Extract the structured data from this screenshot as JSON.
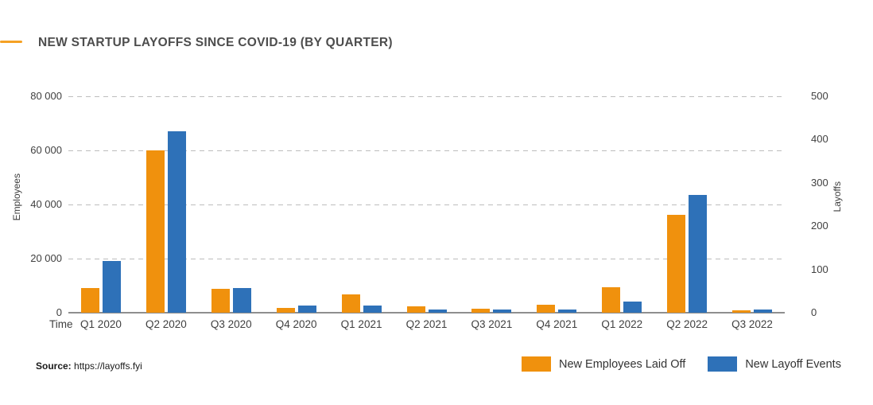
{
  "title": "NEW STARTUP LAYOFFS SINCE COVID-19 (BY QUARTER)",
  "source": {
    "label": "Source:",
    "url_text": "https://layoffs.fyi"
  },
  "colors": {
    "accent_dash": "#F5A124",
    "bar_employees": "#F0910D",
    "bar_events": "#2E71B8",
    "grid_line": "#BDBDBD",
    "axis_line": "#8F8F8F",
    "title_text": "#4D4D4D"
  },
  "chart_data": {
    "type": "bar",
    "title": "NEW STARTUP LAYOFFS SINCE COVID-19 (BY QUARTER)",
    "categories": [
      "Q1 2020",
      "Q2 2020",
      "Q3 2020",
      "Q4 2020",
      "Q1 2021",
      "Q2 2021",
      "Q3 2021",
      "Q4 2021",
      "Q1 2022",
      "Q2 2022",
      "Q3 2022"
    ],
    "series": [
      {
        "name": "New Employees Laid Off",
        "axis": "left",
        "color": "#F0910D",
        "values": [
          9100,
          60000,
          8800,
          1700,
          6700,
          2400,
          1600,
          2800,
          9400,
          36200,
          800
        ]
      },
      {
        "name": "New Layoff Events",
        "axis": "right",
        "color": "#2E71B8",
        "values": [
          120,
          420,
          57,
          17,
          17,
          8,
          7,
          7,
          26,
          272,
          8
        ]
      }
    ],
    "x_axis_label": "Time",
    "left_axis": {
      "label": "Employees",
      "ticks": [
        "0",
        "20 000",
        "40 000",
        "60 000",
        "80 000"
      ],
      "tick_values": [
        0,
        20000,
        40000,
        60000,
        80000
      ],
      "max": 80000
    },
    "right_axis": {
      "label": "Layoffs",
      "ticks": [
        "0",
        "100",
        "200",
        "300",
        "400",
        "500"
      ],
      "tick_values": [
        0,
        100,
        200,
        300,
        400,
        500
      ],
      "max": 500
    },
    "grid": "horizontal dashed",
    "legend_position": "bottom-right"
  }
}
